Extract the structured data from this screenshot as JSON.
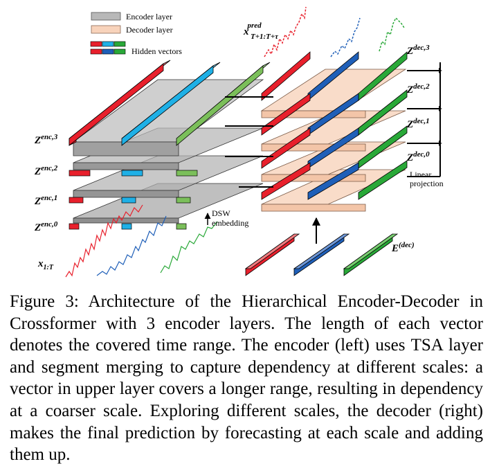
{
  "legend": {
    "encoder_label": "Encoder layer",
    "decoder_label": "Decoder layer",
    "hidden_label": "Hidden vectors",
    "encoder_color": "#b8b8b8",
    "decoder_color": "#f8d3bb"
  },
  "series_colors": {
    "red": "#e8202c",
    "blue": "#1f5fb8",
    "cyan": "#1fb0e6",
    "green": "#29a838"
  },
  "labels": {
    "zenc3_base": "Z",
    "zenc3_sup": "enc,3",
    "zenc2_base": "Z",
    "zenc2_sup": "enc,2",
    "zenc1_base": "Z",
    "zenc1_sup": "enc,1",
    "zenc0_base": "Z",
    "zenc0_sup": "enc,0",
    "zdec3_base": "Z",
    "zdec3_sup": "dec,3",
    "zdec2_base": "Z",
    "zdec2_sup": "dec,2",
    "zdec1_base": "Z",
    "zdec1_sup": "dec,1",
    "zdec0_base": "Z",
    "zdec0_sup": "dec,0",
    "input_base": "x",
    "input_sub": "1:T",
    "pred_base": "x",
    "pred_sup": "pred",
    "pred_sub": "T+1:T+τ",
    "edec_base": "E",
    "edec_sup": "(dec)",
    "dsw_line1": "DSW",
    "dsw_line2": "embedding",
    "linear_line1": "Linear",
    "linear_line2": "projection"
  },
  "caption": "Figure 3: Architecture of the Hierarchical Encoder-Decoder in Crossformer with 3 encoder layers. The length of each vector denotes the covered time range. The encoder (left) uses TSA layer and segment merging to capture dependency at different scales: a vector in upper layer covers a longer range, resulting in dependency at a coarser scale. Exploring different scales, the decoder (right) makes the final prediction by forecasting at each scale and adding them up."
}
